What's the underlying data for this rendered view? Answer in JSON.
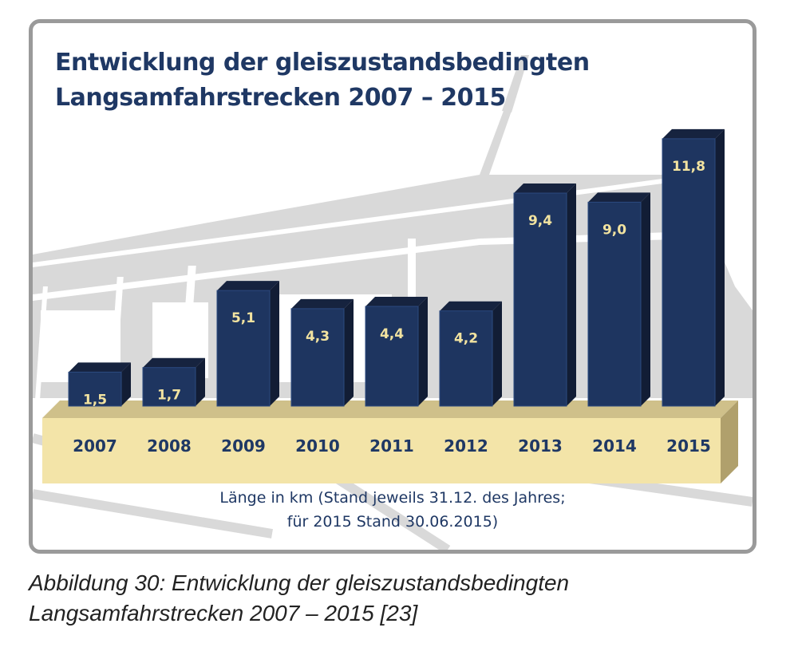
{
  "chart_data": {
    "type": "bar",
    "title": "Entwicklung der gleiszustandsbedingten Langsamfahrstrecken 2007 – 2015",
    "title_lines": [
      "Entwicklung der gleiszustandsbedingten",
      "Langsamfahrstrecken 2007 – 2015"
    ],
    "categories": [
      "2007",
      "2008",
      "2009",
      "2010",
      "2011",
      "2012",
      "2013",
      "2014",
      "2015"
    ],
    "values": [
      1.5,
      1.7,
      5.1,
      4.3,
      4.4,
      4.2,
      9.4,
      9.0,
      11.8
    ],
    "data_labels": [
      "1,5",
      "1,7",
      "5,1",
      "4,3",
      "4,4",
      "4,2",
      "9,4",
      "9,0",
      "11,8"
    ],
    "xlabel": "",
    "ylabel": "Länge in km",
    "ylim": [
      0,
      12
    ],
    "grid": false,
    "legend": "none",
    "note_lines": [
      "Länge in km (Stand jeweils 31.12. des Jahres;",
      "für 2015 Stand 30.06.2015)"
    ],
    "colors": {
      "bar_front": "#1e3560",
      "bar_top": "#16233f",
      "bar_side": "#121d35",
      "label": "#f2e3a0",
      "base_front": "#f3e4a8",
      "base_top": "#cfc08a",
      "base_side": "#b0a06c",
      "title": "#1f3864",
      "background_art": "#d9d9d9"
    }
  },
  "caption": {
    "lines": [
      "Abbildung 30: Entwicklung der gleiszustandsbedingten",
      "Langsamfahrstrecken 2007 – 2015 [23]"
    ]
  }
}
